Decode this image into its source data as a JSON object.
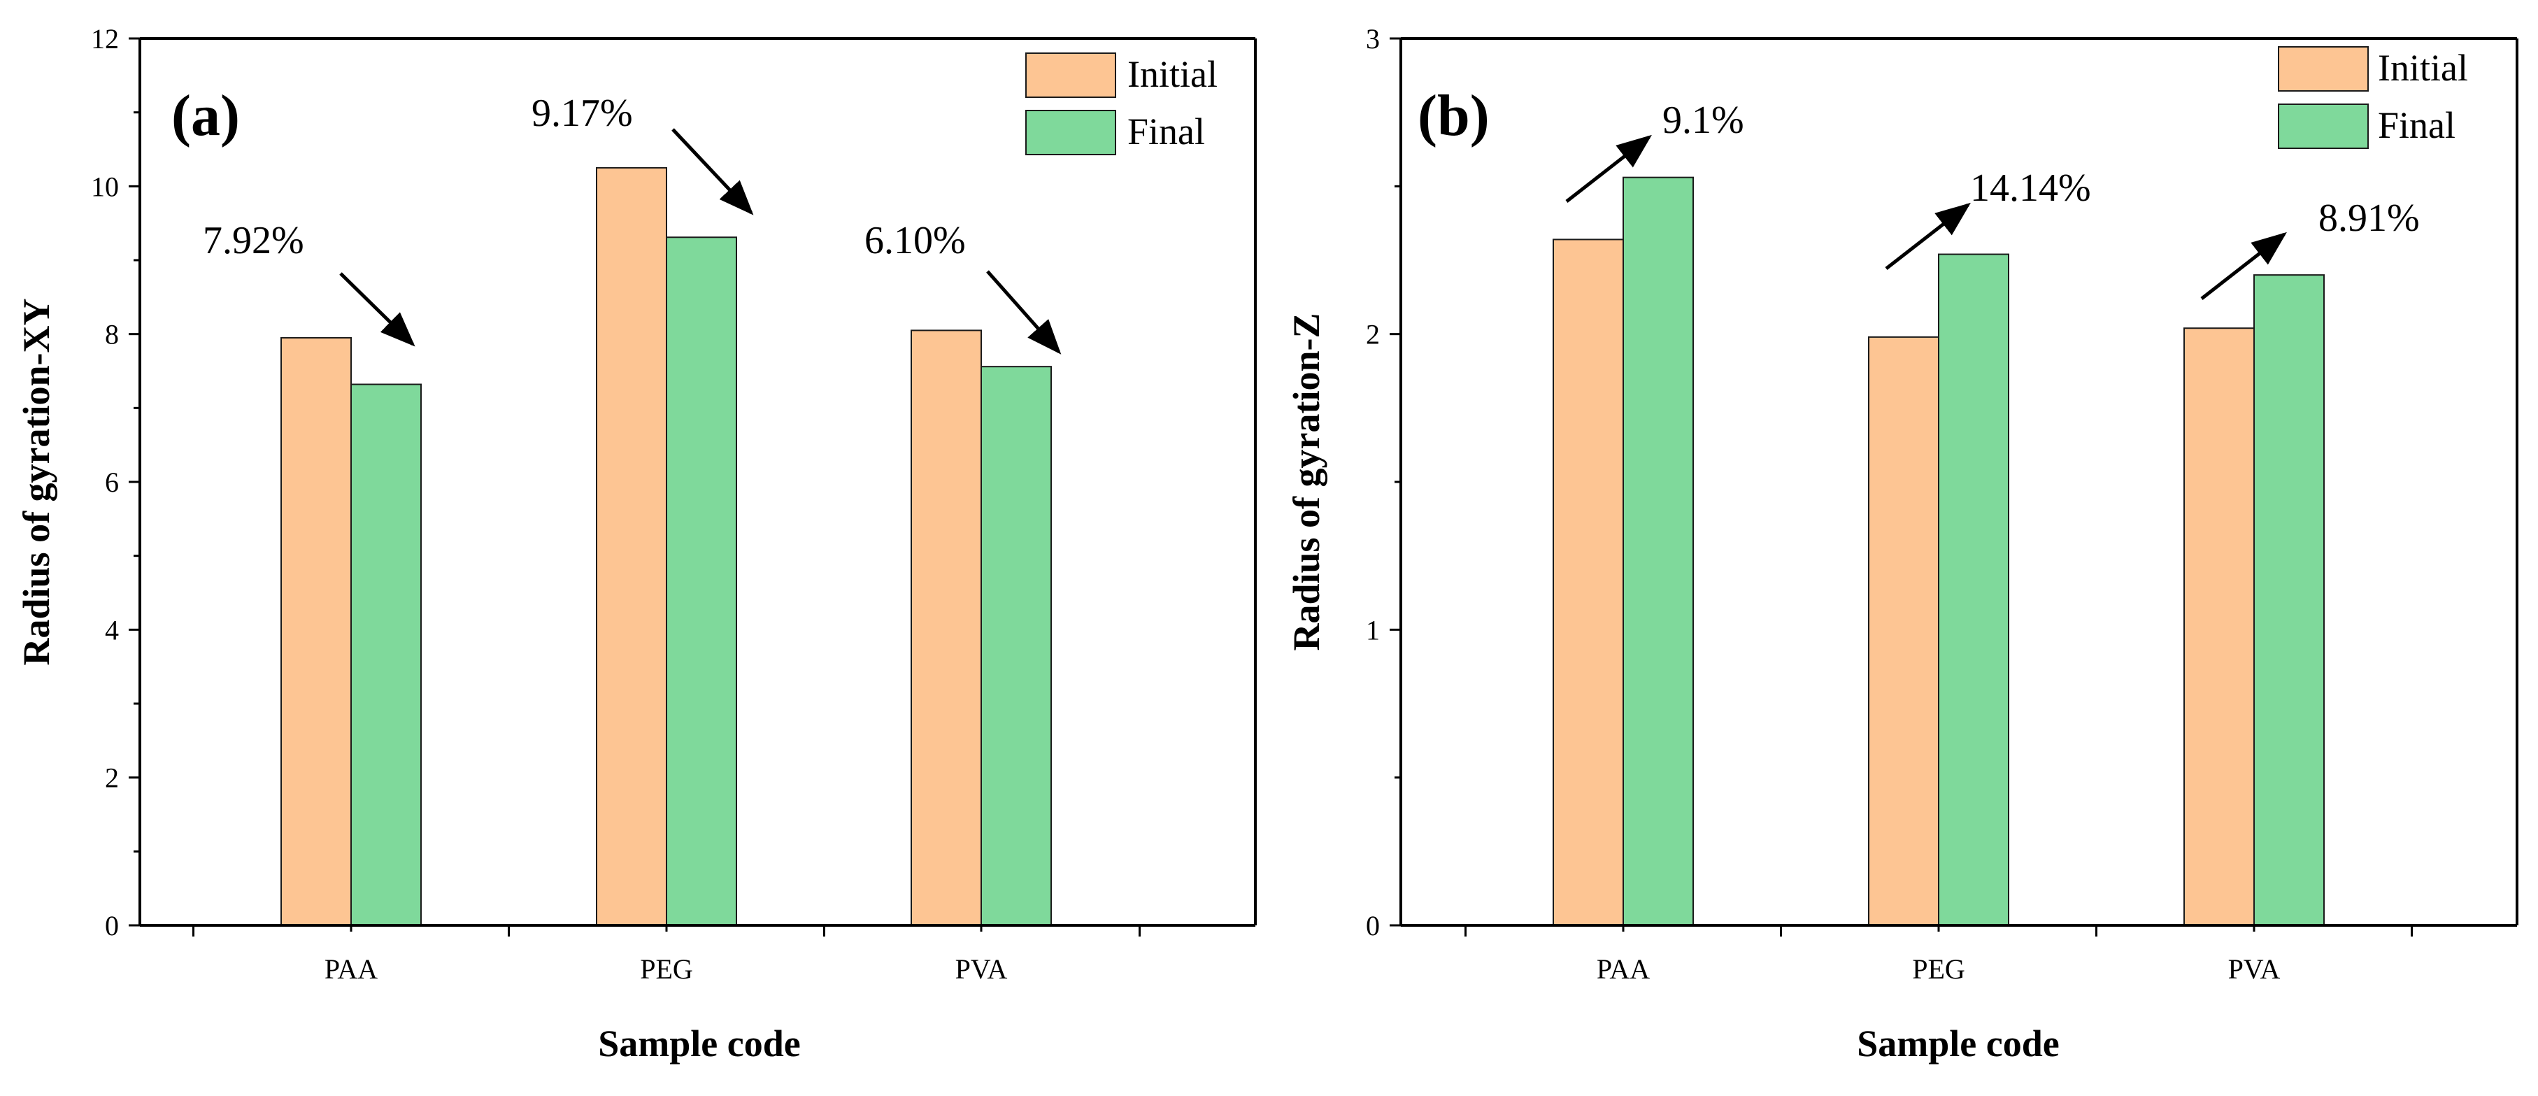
{
  "chart_data": [
    {
      "type": "bar",
      "panel_label": "(a)",
      "categories": [
        "PAA",
        "PEG",
        "PVA"
      ],
      "series": [
        {
          "name": "Initial",
          "values": [
            7.95,
            10.25,
            8.05
          ]
        },
        {
          "name": "Final",
          "values": [
            7.32,
            9.31,
            7.56
          ]
        }
      ],
      "xlabel": "Sample code",
      "ylabel": "Radius of gyration-XY",
      "ylim": [
        0,
        12
      ],
      "yticks": [
        0,
        2,
        4,
        6,
        8,
        10,
        12
      ],
      "yticks_display": [
        "0",
        "2",
        "4",
        "6",
        "8",
        "10",
        "12"
      ],
      "grid": false,
      "legend": "top-right",
      "annotations": [
        {
          "text": "7.92%",
          "category": "PAA",
          "direction": "down"
        },
        {
          "text": "9.17%",
          "category": "PEG",
          "direction": "down"
        },
        {
          "text": "6.10%",
          "category": "PVA",
          "direction": "down"
        }
      ]
    },
    {
      "type": "bar",
      "panel_label": "(b)",
      "categories": [
        "PAA",
        "PEG",
        "PVA"
      ],
      "series": [
        {
          "name": "Initial",
          "values": [
            2.32,
            1.99,
            2.02
          ]
        },
        {
          "name": "Final",
          "values": [
            2.53,
            2.27,
            2.2
          ]
        }
      ],
      "xlabel": "Sample code",
      "ylabel": "Radius of gyration-Z",
      "ylim": [
        0,
        3
      ],
      "yticks": [
        0,
        1,
        2,
        3
      ],
      "yticks_display": [
        "0",
        "1",
        "2",
        "3"
      ],
      "grid": false,
      "legend": "top-right",
      "annotations": [
        {
          "text": "9.1%",
          "category": "PAA",
          "direction": "up"
        },
        {
          "text": "14.14%",
          "category": "PEG",
          "direction": "up"
        },
        {
          "text": "8.91%",
          "category": "PVA",
          "direction": "up"
        }
      ]
    }
  ],
  "colors": {
    "initial": "#fdc593",
    "final": "#7fd99b",
    "bar_edge": "#1a1a1a",
    "axis": "#000000"
  }
}
